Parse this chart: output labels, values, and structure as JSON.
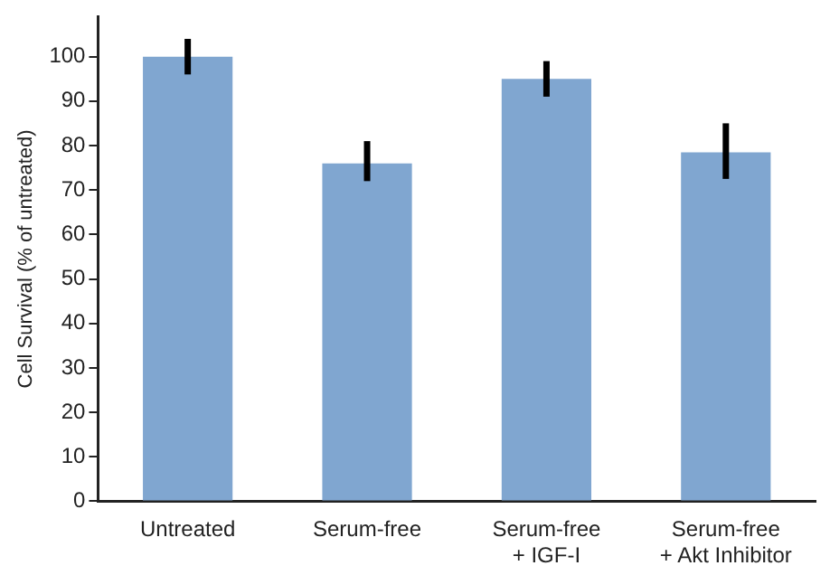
{
  "chart_data": {
    "type": "bar",
    "ylabel": "Cell Survival (% of untreated)",
    "categories": [
      "Untreated",
      "Serum-free",
      "Serum-free\n+ IGF-I",
      "Serum-free\n+ Akt Inhibitor"
    ],
    "values": [
      100,
      76,
      95,
      78.5
    ],
    "errors": [
      4,
      [
        72,
        81
      ],
      4,
      [
        72.5,
        85
      ]
    ],
    "color": "#80a6d0",
    "ylim": [
      0,
      109
    ],
    "yticks": [
      0,
      10,
      20,
      30,
      40,
      50,
      60,
      70,
      80,
      90,
      100
    ],
    "grid": false,
    "legend": false
  }
}
